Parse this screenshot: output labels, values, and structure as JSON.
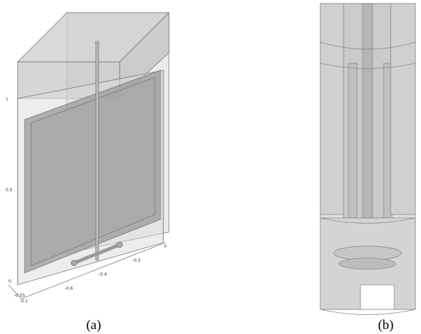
{
  "panel_a": {
    "caption": "(a)",
    "vertical_ticks": [
      "1",
      "0.5",
      "0"
    ],
    "depth_ticks": [
      "-0.05",
      "-0.1"
    ],
    "horizontal_ticks": [
      "-0.6",
      "-0.4",
      "-0.2",
      "0"
    ]
  },
  "panel_b": {
    "caption": "(b)"
  }
}
